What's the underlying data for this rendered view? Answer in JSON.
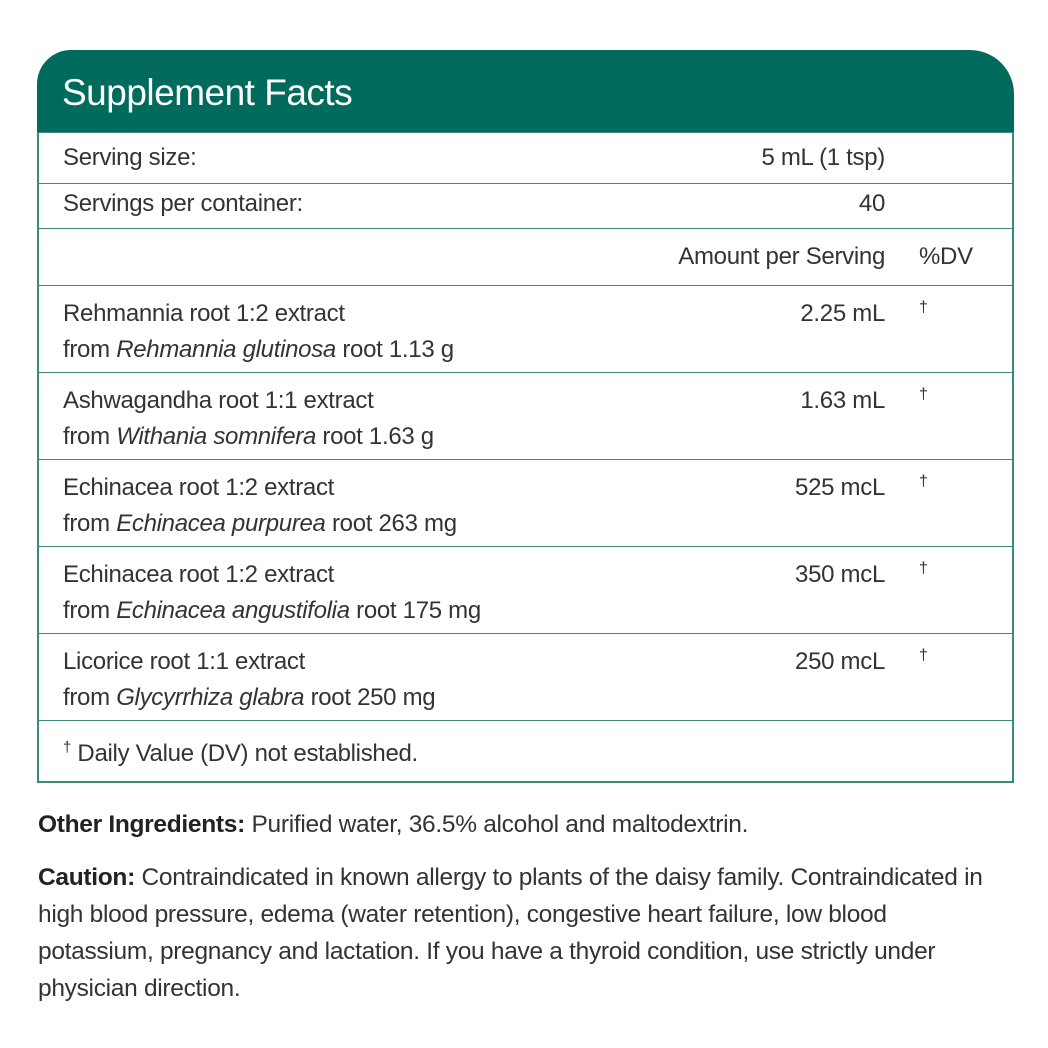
{
  "title": "Supplement Facts",
  "serving_size": {
    "label": "Serving size:",
    "value": "5 mL (1 tsp)"
  },
  "servings_per_container": {
    "label": "Servings per container:",
    "value": "40"
  },
  "columns": {
    "amount": "Amount per Serving",
    "dv": "%DV"
  },
  "ingredients": [
    {
      "name": "Rehmannia root 1:2 extract",
      "from": "from",
      "species": "Rehmannia glutinosa",
      "source": "root 1.13 g",
      "amount": "2.25 mL",
      "dv": "†"
    },
    {
      "name": "Ashwagandha root 1:1 extract",
      "from": "from",
      "species": "Withania somnifera",
      "source": "root 1.63 g",
      "amount": "1.63 mL",
      "dv": "†"
    },
    {
      "name": "Echinacea root 1:2 extract",
      "from": "from",
      "species": "Echinacea purpurea",
      "source": "root 263 mg",
      "amount": "525 mcL",
      "dv": "†"
    },
    {
      "name": "Echinacea root 1:2 extract",
      "from": "from",
      "species": "Echinacea angustifolia",
      "source": "root 175 mg",
      "amount": "350 mcL",
      "dv": "†"
    },
    {
      "name": "Licorice root 1:1 extract",
      "from": "from",
      "species": "Glycyrrhiza glabra",
      "source": "root 250 mg",
      "amount": "250 mcL",
      "dv": "†"
    }
  ],
  "footnote": {
    "mark": "†",
    "text": "Daily Value (DV) not established."
  },
  "other_ingredients": {
    "label": "Other Ingredients:",
    "text": "Purified water, 36.5% alcohol and maltodextrin."
  },
  "caution": {
    "label": "Caution:",
    "text": "Contraindicated in known allergy to plants of the daisy family. Contraindicated in high blood pressure, edema (water retention), congestive heart failure, low blood potassium, pregnancy and lactation. If you have a thyroid condition, use strictly under physician direction."
  },
  "colors": {
    "header": "#006b5d",
    "border": "#3c8a7c"
  }
}
